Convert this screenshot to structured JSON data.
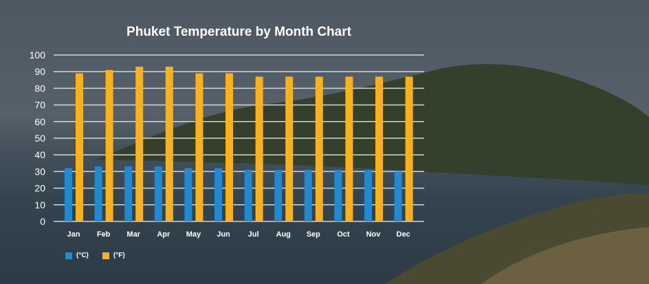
{
  "chart_data": {
    "type": "bar",
    "title": "Phuket Temperature by Month Chart",
    "categories": [
      "Jan",
      "Feb",
      "Mar",
      "Apr",
      "May",
      "Jun",
      "Jul",
      "Aug",
      "Sep",
      "Oct",
      "Nov",
      "Dec"
    ],
    "series": [
      {
        "name": "(°C)",
        "color": "#1f8ad2",
        "values": [
          32,
          33,
          33,
          33,
          32,
          32,
          31,
          31,
          31,
          31,
          31,
          30
        ]
      },
      {
        "name": "(°F)",
        "color": "#fbb117",
        "values": [
          89,
          91,
          93,
          93,
          89,
          89,
          87,
          87,
          87,
          87,
          87,
          87
        ]
      }
    ],
    "yticks": [
      0,
      10,
      20,
      30,
      40,
      50,
      60,
      70,
      80,
      90,
      100
    ],
    "ylim": [
      0,
      100
    ],
    "xlabel": "",
    "ylabel": "",
    "grid": true,
    "legend": "bottom-left"
  }
}
